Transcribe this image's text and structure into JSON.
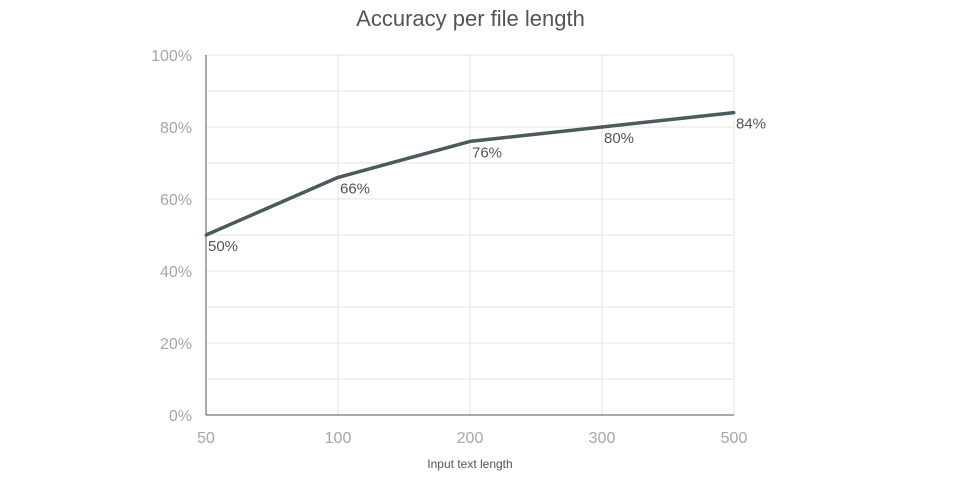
{
  "chart_data": {
    "type": "line",
    "title": "Accuracy per file length",
    "xlabel": "Input text length",
    "ylabel": "",
    "categories": [
      "50",
      "100",
      "200",
      "300",
      "500"
    ],
    "series": [
      {
        "values": [
          50,
          66,
          76,
          80,
          84
        ],
        "color": "#4a5a5e"
      }
    ],
    "data_labels": [
      "50%",
      "66%",
      "76%",
      "80%",
      "84%"
    ],
    "yticks": [
      "0%",
      "20%",
      "40%",
      "60%",
      "80%",
      "100%"
    ],
    "ylim": [
      0,
      100
    ],
    "grid": true,
    "legend": "none"
  }
}
